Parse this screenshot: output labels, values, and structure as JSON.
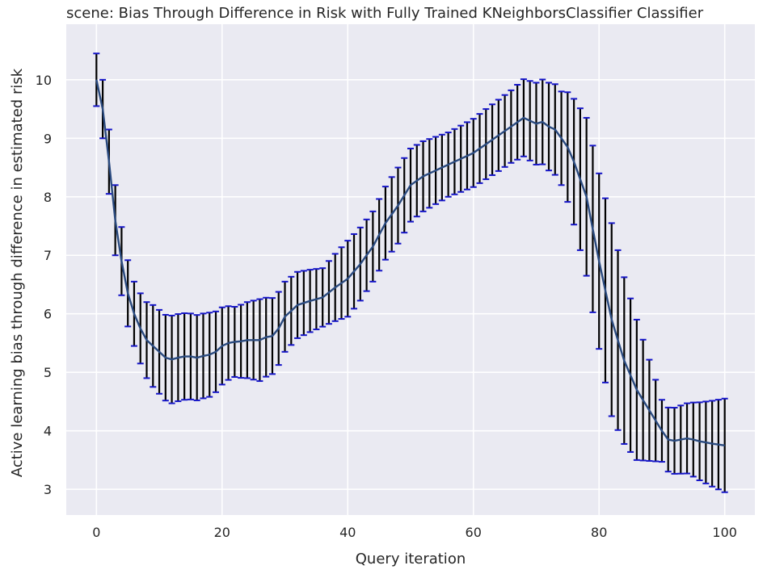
{
  "chart_data": {
    "type": "line",
    "title": "scene: Bias Through Difference in Risk with Fully Trained KNeighborsClassifier Classifier",
    "xlabel": "Query iteration",
    "ylabel": "Active learning bias through difference in estimated risk",
    "xlim": [
      -4.8,
      104.8
    ],
    "ylim": [
      2.56,
      10.95
    ],
    "xticks": [
      0,
      20,
      40,
      60,
      80,
      100
    ],
    "yticks": [
      3,
      4,
      5,
      6,
      7,
      8,
      9,
      10
    ],
    "grid": true,
    "series": [
      {
        "mean_anchors": [
          [
            0,
            10.0
          ],
          [
            1,
            9.5
          ],
          [
            2,
            8.6
          ],
          [
            3,
            7.6
          ],
          [
            4,
            6.9
          ],
          [
            5,
            6.35
          ],
          [
            6,
            6.0
          ],
          [
            7,
            5.75
          ],
          [
            8,
            5.55
          ],
          [
            9,
            5.45
          ],
          [
            10,
            5.35
          ],
          [
            11,
            5.25
          ],
          [
            12,
            5.22
          ],
          [
            13,
            5.25
          ],
          [
            14,
            5.27
          ],
          [
            15,
            5.27
          ],
          [
            16,
            5.25
          ],
          [
            17,
            5.28
          ],
          [
            18,
            5.3
          ],
          [
            19,
            5.35
          ],
          [
            20,
            5.45
          ],
          [
            21,
            5.5
          ],
          [
            22,
            5.52
          ],
          [
            23,
            5.53
          ],
          [
            24,
            5.55
          ],
          [
            25,
            5.55
          ],
          [
            26,
            5.55
          ],
          [
            27,
            5.6
          ],
          [
            28,
            5.62
          ],
          [
            29,
            5.75
          ],
          [
            30,
            5.95
          ],
          [
            32,
            6.15
          ],
          [
            34,
            6.22
          ],
          [
            36,
            6.28
          ],
          [
            38,
            6.45
          ],
          [
            40,
            6.6
          ],
          [
            42,
            6.85
          ],
          [
            44,
            7.15
          ],
          [
            46,
            7.55
          ],
          [
            48,
            7.85
          ],
          [
            50,
            8.2
          ],
          [
            52,
            8.35
          ],
          [
            54,
            8.45
          ],
          [
            56,
            8.55
          ],
          [
            58,
            8.65
          ],
          [
            60,
            8.75
          ],
          [
            62,
            8.9
          ],
          [
            64,
            9.05
          ],
          [
            66,
            9.2
          ],
          [
            68,
            9.35
          ],
          [
            69,
            9.3
          ],
          [
            70,
            9.25
          ],
          [
            71,
            9.28
          ],
          [
            72,
            9.2
          ],
          [
            73,
            9.15
          ],
          [
            74,
            9.0
          ],
          [
            75,
            8.85
          ],
          [
            76,
            8.6
          ],
          [
            78,
            8.0
          ],
          [
            80,
            6.9
          ],
          [
            82,
            5.9
          ],
          [
            84,
            5.2
          ],
          [
            86,
            4.7
          ],
          [
            88,
            4.35
          ],
          [
            90,
            4.0
          ],
          [
            91,
            3.85
          ],
          [
            92,
            3.83
          ],
          [
            93,
            3.85
          ],
          [
            94,
            3.87
          ],
          [
            95,
            3.85
          ],
          [
            96,
            3.82
          ],
          [
            98,
            3.78
          ],
          [
            100,
            3.75
          ]
        ],
        "halfwidth_anchors": [
          [
            0,
            0.45
          ],
          [
            3,
            0.6
          ],
          [
            6,
            0.55
          ],
          [
            9,
            0.7
          ],
          [
            12,
            0.75
          ],
          [
            18,
            0.72
          ],
          [
            22,
            0.6
          ],
          [
            26,
            0.7
          ],
          [
            30,
            0.6
          ],
          [
            36,
            0.5
          ],
          [
            40,
            0.65
          ],
          [
            44,
            0.6
          ],
          [
            48,
            0.65
          ],
          [
            52,
            0.6
          ],
          [
            56,
            0.55
          ],
          [
            62,
            0.6
          ],
          [
            66,
            0.62
          ],
          [
            70,
            0.7
          ],
          [
            74,
            0.8
          ],
          [
            78,
            1.35
          ],
          [
            82,
            1.65
          ],
          [
            86,
            1.2
          ],
          [
            90,
            0.53
          ],
          [
            94,
            0.6
          ],
          [
            100,
            0.8
          ]
        ]
      }
    ]
  }
}
